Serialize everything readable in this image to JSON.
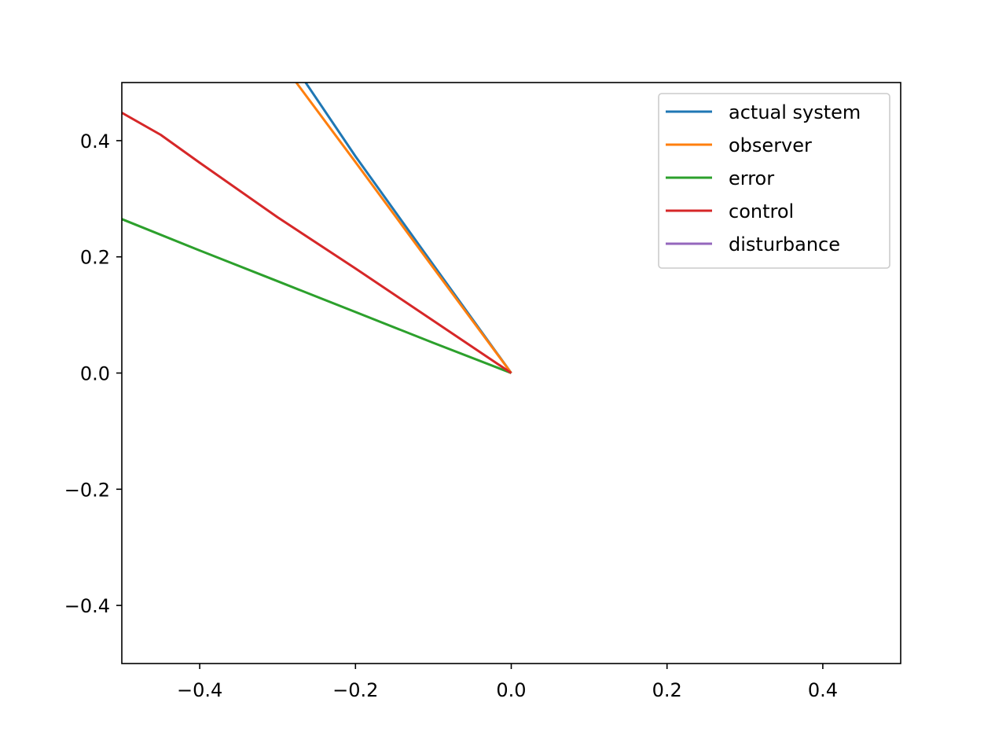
{
  "chart_data": {
    "type": "line",
    "title": "",
    "xlabel": "",
    "ylabel": "",
    "xlim": [
      -0.5,
      0.5
    ],
    "ylim": [
      -0.5,
      0.5
    ],
    "xticks": [
      {
        "value": -0.4,
        "label": "−0.4"
      },
      {
        "value": -0.2,
        "label": "−0.2"
      },
      {
        "value": 0.0,
        "label": "0.0"
      },
      {
        "value": 0.2,
        "label": "0.2"
      },
      {
        "value": 0.4,
        "label": "0.4"
      }
    ],
    "yticks": [
      {
        "value": -0.4,
        "label": "−0.4"
      },
      {
        "value": -0.2,
        "label": "−0.2"
      },
      {
        "value": 0.0,
        "label": "0.0"
      },
      {
        "value": 0.2,
        "label": "0.2"
      },
      {
        "value": 0.4,
        "label": "0.4"
      }
    ],
    "grid": false,
    "legend_position": "top-right",
    "series": [
      {
        "name": "actual system",
        "color": "#1f77b4",
        "x": [
          -0.264,
          -0.2,
          -0.1,
          0.0
        ],
        "y": [
          0.5,
          0.373,
          0.186,
          0.0
        ]
      },
      {
        "name": "observer",
        "color": "#ff7f0e",
        "x": [
          -0.276,
          -0.2,
          -0.1,
          0.0
        ],
        "y": [
          0.5,
          0.363,
          0.181,
          0.0
        ]
      },
      {
        "name": "error",
        "color": "#2ca02c",
        "x": [
          -0.5,
          -0.4,
          -0.3,
          -0.2,
          -0.1,
          0.0
        ],
        "y": [
          0.265,
          0.211,
          0.158,
          0.105,
          0.052,
          0.0
        ]
      },
      {
        "name": "control",
        "color": "#d62728",
        "x": [
          -0.5,
          -0.45,
          -0.4,
          -0.3,
          -0.2,
          -0.1,
          0.0
        ],
        "y": [
          0.448,
          0.41,
          0.362,
          0.268,
          0.18,
          0.09,
          0.0
        ]
      },
      {
        "name": "disturbance",
        "color": "#9467bd",
        "x": [],
        "y": []
      }
    ]
  }
}
